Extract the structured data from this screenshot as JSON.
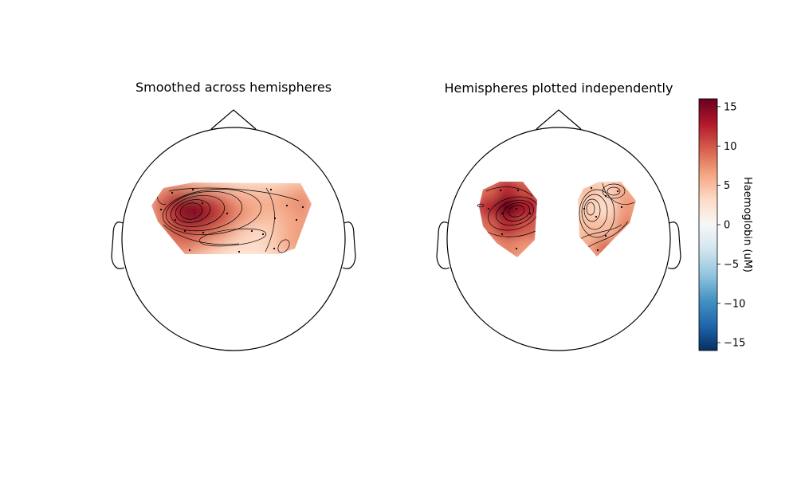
{
  "chart_data": [
    {
      "type": "heatmap",
      "subtype": "topomap",
      "title": "Smoothed across hemispheres",
      "colormap": "RdBu_r",
      "vlim": [
        -16,
        16
      ],
      "peak_value": 16,
      "sensor_grid": {
        "rows": [
          [
            6,
            8,
            7,
            6,
            5,
            4,
            4,
            4,
            5,
            6
          ],
          [
            9,
            13,
            15,
            13,
            10,
            7,
            6,
            6,
            7,
            8
          ],
          [
            8,
            12,
            16,
            14,
            11,
            8,
            6,
            5,
            6,
            7
          ],
          [
            7,
            10,
            11,
            10,
            8,
            5,
            3,
            4,
            6,
            7
          ],
          [
            6,
            8,
            8,
            6,
            4,
            3,
            3,
            4,
            6,
            7
          ]
        ]
      }
    },
    {
      "type": "heatmap",
      "subtype": "topomap",
      "title": "Hemispheres plotted independently",
      "colormap": "RdBu_r",
      "vlim": [
        -16,
        16
      ],
      "peak_value": 16,
      "left_hemisphere": {
        "rows": [
          [
            9,
            12,
            10
          ],
          [
            12,
            16,
            13
          ],
          [
            9,
            12,
            10
          ],
          [
            6,
            8,
            7
          ]
        ]
      },
      "right_hemisphere": {
        "rows": [
          [
            5,
            4,
            6
          ],
          [
            4,
            3,
            7
          ],
          [
            5,
            5,
            8
          ],
          [
            6,
            9,
            7
          ]
        ]
      }
    }
  ],
  "colorbar": {
    "label": "Haemoglobin (uM)",
    "min": -16,
    "max": 16,
    "ticks": [
      15,
      10,
      5,
      0,
      -5,
      -10,
      -15
    ],
    "tick_labels": [
      "15",
      "10",
      "5",
      "0",
      "−5",
      "−10",
      "−15"
    ]
  }
}
